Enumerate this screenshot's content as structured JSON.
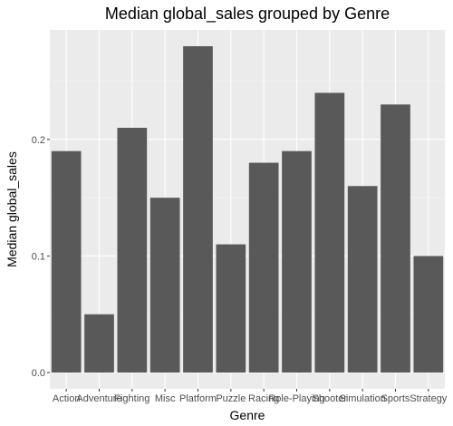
{
  "chart_data": {
    "type": "bar",
    "title": "Median global_sales grouped by Genre",
    "xlabel": "Genre",
    "ylabel": "Median global_sales",
    "categories": [
      "Action",
      "Adventure",
      "Fighting",
      "Misc",
      "Platform",
      "Puzzle",
      "Racing",
      "Role-Playing",
      "Shooter",
      "Simulation",
      "Sports",
      "Strategy"
    ],
    "values": [
      0.19,
      0.05,
      0.21,
      0.15,
      0.28,
      0.11,
      0.18,
      0.19,
      0.24,
      0.16,
      0.23,
      0.1
    ],
    "ylim": [
      -0.014,
      0.294
    ],
    "yticks": [
      0.0,
      0.1,
      0.2
    ],
    "ytick_labels": [
      "0.0",
      "0.1",
      "0.2"
    ],
    "grid": true,
    "legend": "none",
    "colors": {
      "bar": "#595959",
      "panel": "#ebebeb",
      "grid_major": "#ffffff",
      "grid_minor": "#f5f5f5",
      "tick_label": "#4d4d4d"
    }
  }
}
